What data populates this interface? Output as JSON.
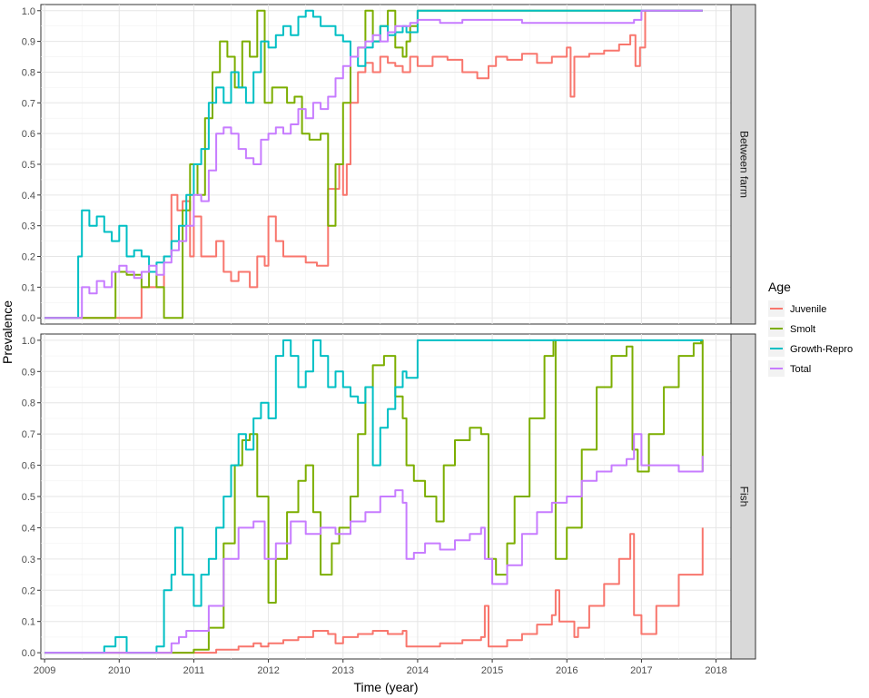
{
  "chart_data": {
    "type": "line",
    "xlabel": "Time (year)",
    "ylabel": "Prevalence",
    "xlim": [
      2008.95,
      2018.2
    ],
    "ylim": [
      -0.02,
      1.02
    ],
    "x_ticks": [
      "2009",
      "2010",
      "2011",
      "2012",
      "2013",
      "2014",
      "2015",
      "2016",
      "2017",
      "2018"
    ],
    "y_ticks": [
      "0.0",
      "0.1",
      "0.2",
      "0.3",
      "0.4",
      "0.5",
      "0.6",
      "0.7",
      "0.8",
      "0.9",
      "1.0"
    ],
    "grid": true,
    "legend": {
      "title": "Age",
      "position": "right"
    },
    "colors": {
      "Juvenile": "#f8766d",
      "Smolt": "#7cae00",
      "Growth-Repro": "#00bfc4",
      "Total": "#c77cff"
    },
    "panels": [
      {
        "strip": "Between farm",
        "series": [
          {
            "name": "Juvenile",
            "x": [
              2009.0,
              2010.2,
              2010.3,
              2010.55,
              2010.6,
              2010.7,
              2010.78,
              2010.85,
              2010.95,
              2011.0,
              2011.1,
              2011.3,
              2011.4,
              2011.5,
              2011.6,
              2011.75,
              2011.85,
              2011.95,
              2012.0,
              2012.1,
              2012.2,
              2012.35,
              2012.5,
              2012.65,
              2012.8,
              2012.95,
              2013.0,
              2013.05,
              2013.1,
              2013.2,
              2013.3,
              2013.4,
              2013.5,
              2013.6,
              2013.7,
              2013.8,
              2013.9,
              2014.0,
              2014.2,
              2014.4,
              2014.6,
              2014.8,
              2014.95,
              2015.05,
              2015.2,
              2015.4,
              2015.6,
              2015.8,
              2016.0,
              2016.05,
              2016.1,
              2016.3,
              2016.5,
              2016.7,
              2016.85,
              2016.92,
              2016.98,
              2017.05,
              2017.2,
              2017.4,
              2017.6,
              2017.82
            ],
            "values": [
              0.0,
              0.0,
              0.1,
              0.1,
              0.2,
              0.4,
              0.35,
              0.38,
              0.2,
              0.33,
              0.2,
              0.25,
              0.15,
              0.12,
              0.15,
              0.1,
              0.2,
              0.17,
              0.33,
              0.25,
              0.2,
              0.2,
              0.18,
              0.17,
              0.42,
              0.5,
              0.4,
              0.5,
              0.7,
              0.8,
              0.83,
              0.8,
              0.85,
              0.83,
              0.82,
              0.8,
              0.85,
              0.82,
              0.85,
              0.84,
              0.8,
              0.78,
              0.82,
              0.85,
              0.84,
              0.86,
              0.83,
              0.85,
              0.88,
              0.72,
              0.85,
              0.86,
              0.87,
              0.89,
              0.92,
              0.82,
              0.88,
              1.0,
              1.0,
              1.0,
              1.0,
              1.0
            ]
          },
          {
            "name": "Smolt",
            "x": [
              2009.0,
              2009.5,
              2009.8,
              2009.95,
              2010.1,
              2010.3,
              2010.4,
              2010.5,
              2010.6,
              2010.75,
              2010.85,
              2010.95,
              2011.05,
              2011.15,
              2011.25,
              2011.35,
              2011.45,
              2011.55,
              2011.65,
              2011.75,
              2011.85,
              2011.95,
              2012.05,
              2012.15,
              2012.25,
              2012.35,
              2012.45,
              2012.55,
              2012.7,
              2012.8,
              2012.9,
              2013.0,
              2013.1,
              2013.2,
              2013.3,
              2013.4,
              2013.5,
              2013.6,
              2013.7,
              2013.8,
              2013.85,
              2013.9,
              2014.0,
              2014.5,
              2015.0,
              2016.0,
              2017.0,
              2017.82
            ],
            "values": [
              0.0,
              0.0,
              0.0,
              0.15,
              0.14,
              0.1,
              0.15,
              0.1,
              0.0,
              0.0,
              0.35,
              0.5,
              0.4,
              0.65,
              0.8,
              0.9,
              0.85,
              0.75,
              0.9,
              0.85,
              1.0,
              0.7,
              0.75,
              0.75,
              0.7,
              0.72,
              0.6,
              0.58,
              0.6,
              0.3,
              0.5,
              0.7,
              0.85,
              0.88,
              1.0,
              0.9,
              0.95,
              1.0,
              0.88,
              0.85,
              0.9,
              0.95,
              1.0,
              1.0,
              1.0,
              1.0,
              1.0,
              1.0
            ]
          },
          {
            "name": "Growth-Repro",
            "x": [
              2009.0,
              2009.4,
              2009.45,
              2009.5,
              2009.6,
              2009.7,
              2009.8,
              2009.9,
              2010.0,
              2010.1,
              2010.2,
              2010.3,
              2010.4,
              2010.5,
              2010.6,
              2010.7,
              2010.8,
              2010.9,
              2011.0,
              2011.1,
              2011.2,
              2011.3,
              2011.4,
              2011.5,
              2011.6,
              2011.7,
              2011.8,
              2011.9,
              2012.0,
              2012.1,
              2012.2,
              2012.3,
              2012.4,
              2012.5,
              2012.6,
              2012.7,
              2012.8,
              2012.9,
              2013.0,
              2013.1,
              2013.2,
              2013.3,
              2013.4,
              2013.5,
              2013.6,
              2013.7,
              2013.8,
              2013.85,
              2014.0,
              2015.0,
              2016.0,
              2017.0,
              2017.82
            ],
            "values": [
              0.0,
              0.0,
              0.2,
              0.35,
              0.3,
              0.33,
              0.28,
              0.25,
              0.3,
              0.2,
              0.22,
              0.2,
              0.15,
              0.18,
              0.2,
              0.25,
              0.3,
              0.4,
              0.5,
              0.55,
              0.7,
              0.75,
              0.7,
              0.8,
              0.75,
              0.7,
              0.8,
              0.9,
              0.88,
              0.92,
              0.95,
              0.92,
              0.98,
              1.0,
              0.98,
              0.95,
              0.95,
              0.92,
              0.9,
              0.85,
              0.82,
              0.88,
              0.9,
              0.95,
              0.92,
              0.93,
              0.95,
              0.93,
              1.0,
              1.0,
              1.0,
              1.0,
              1.0
            ]
          },
          {
            "name": "Total",
            "x": [
              2009.0,
              2009.4,
              2009.5,
              2009.6,
              2009.7,
              2009.8,
              2009.9,
              2010.0,
              2010.1,
              2010.2,
              2010.3,
              2010.4,
              2010.5,
              2010.6,
              2010.7,
              2010.8,
              2010.9,
              2011.0,
              2011.1,
              2011.2,
              2011.3,
              2011.4,
              2011.5,
              2011.6,
              2011.7,
              2011.8,
              2011.9,
              2012.0,
              2012.1,
              2012.2,
              2012.3,
              2012.4,
              2012.5,
              2012.6,
              2012.7,
              2012.8,
              2012.9,
              2013.0,
              2013.1,
              2013.2,
              2013.3,
              2013.4,
              2013.5,
              2013.6,
              2013.7,
              2013.8,
              2013.9,
              2014.0,
              2014.3,
              2014.6,
              2015.0,
              2015.4,
              2015.8,
              2016.2,
              2016.6,
              2016.9,
              2017.0,
              2017.82
            ],
            "values": [
              0.0,
              0.0,
              0.1,
              0.08,
              0.12,
              0.1,
              0.15,
              0.17,
              0.15,
              0.13,
              0.15,
              0.17,
              0.14,
              0.18,
              0.22,
              0.25,
              0.3,
              0.4,
              0.38,
              0.48,
              0.6,
              0.62,
              0.6,
              0.55,
              0.52,
              0.5,
              0.58,
              0.6,
              0.62,
              0.6,
              0.63,
              0.68,
              0.65,
              0.7,
              0.68,
              0.72,
              0.78,
              0.82,
              0.85,
              0.88,
              0.9,
              0.92,
              0.9,
              0.93,
              0.95,
              0.95,
              0.96,
              0.97,
              0.96,
              0.97,
              0.97,
              0.96,
              0.96,
              0.96,
              0.96,
              0.97,
              1.0,
              1.0
            ]
          }
        ]
      },
      {
        "strip": "Fish",
        "series": [
          {
            "name": "Juvenile",
            "x": [
              2009.0,
              2010.0,
              2010.5,
              2011.0,
              2011.3,
              2011.6,
              2011.8,
              2011.9,
              2012.0,
              2012.2,
              2012.4,
              2012.6,
              2012.8,
              2012.9,
              2013.0,
              2013.2,
              2013.4,
              2013.6,
              2013.8,
              2013.85,
              2014.0,
              2014.3,
              2014.6,
              2014.85,
              2014.9,
              2014.95,
              2015.0,
              2015.2,
              2015.4,
              2015.6,
              2015.8,
              2015.85,
              2015.9,
              2016.0,
              2016.1,
              2016.15,
              2016.3,
              2016.5,
              2016.7,
              2016.85,
              2016.9,
              2017.0,
              2017.2,
              2017.5,
              2017.82
            ],
            "values": [
              0.0,
              0.0,
              0.0,
              0.0,
              0.01,
              0.02,
              0.03,
              0.02,
              0.03,
              0.04,
              0.05,
              0.07,
              0.06,
              0.03,
              0.05,
              0.06,
              0.07,
              0.06,
              0.07,
              0.02,
              0.02,
              0.03,
              0.04,
              0.05,
              0.15,
              0.02,
              0.02,
              0.04,
              0.06,
              0.09,
              0.12,
              0.2,
              0.1,
              0.1,
              0.05,
              0.08,
              0.15,
              0.22,
              0.3,
              0.38,
              0.12,
              0.06,
              0.15,
              0.25,
              0.4
            ]
          },
          {
            "name": "Smolt",
            "x": [
              2009.0,
              2010.0,
              2010.5,
              2010.8,
              2011.0,
              2011.2,
              2011.4,
              2011.55,
              2011.65,
              2011.75,
              2011.85,
              2012.0,
              2012.1,
              2012.25,
              2012.4,
              2012.5,
              2012.6,
              2012.7,
              2012.85,
              2012.95,
              2013.1,
              2013.2,
              2013.3,
              2013.4,
              2013.55,
              2013.7,
              2013.8,
              2013.85,
              2013.95,
              2014.1,
              2014.25,
              2014.35,
              2014.5,
              2014.7,
              2014.85,
              2014.95,
              2015.05,
              2015.2,
              2015.3,
              2015.5,
              2015.7,
              2015.82,
              2015.85,
              2016.0,
              2016.2,
              2016.4,
              2016.6,
              2016.8,
              2016.88,
              2016.95,
              2017.1,
              2017.3,
              2017.5,
              2017.7,
              2017.8,
              2017.82
            ],
            "values": [
              0.0,
              0.0,
              0.0,
              0.0,
              0.01,
              0.08,
              0.35,
              0.6,
              0.68,
              0.7,
              0.5,
              0.16,
              0.3,
              0.45,
              0.55,
              0.6,
              0.45,
              0.25,
              0.35,
              0.4,
              0.5,
              0.7,
              0.85,
              0.92,
              0.95,
              0.82,
              0.75,
              0.6,
              0.55,
              0.5,
              0.42,
              0.6,
              0.68,
              0.72,
              0.7,
              0.3,
              0.25,
              0.35,
              0.5,
              0.75,
              0.95,
              1.0,
              0.3,
              0.4,
              0.65,
              0.85,
              0.95,
              0.98,
              0.65,
              0.58,
              0.7,
              0.85,
              0.95,
              0.99,
              1.0,
              0.58
            ]
          },
          {
            "name": "Growth-Repro",
            "x": [
              2009.0,
              2009.4,
              2009.8,
              2009.95,
              2010.1,
              2010.3,
              2010.5,
              2010.6,
              2010.7,
              2010.75,
              2010.85,
              2011.0,
              2011.1,
              2011.2,
              2011.3,
              2011.4,
              2011.5,
              2011.6,
              2011.7,
              2011.8,
              2011.9,
              2012.0,
              2012.1,
              2012.2,
              2012.3,
              2012.4,
              2012.5,
              2012.6,
              2012.7,
              2012.8,
              2012.9,
              2013.0,
              2013.1,
              2013.2,
              2013.3,
              2013.4,
              2013.5,
              2013.6,
              2013.7,
              2013.8,
              2013.85,
              2014.0,
              2015.0,
              2016.0,
              2017.0,
              2017.82
            ],
            "values": [
              0.0,
              0.0,
              0.02,
              0.05,
              0.0,
              0.0,
              0.02,
              0.2,
              0.25,
              0.4,
              0.25,
              0.15,
              0.25,
              0.3,
              0.4,
              0.5,
              0.6,
              0.7,
              0.65,
              0.75,
              0.8,
              0.75,
              0.95,
              1.0,
              0.95,
              0.85,
              0.9,
              1.0,
              0.95,
              0.85,
              0.9,
              0.85,
              0.82,
              0.8,
              0.85,
              0.6,
              0.72,
              0.78,
              0.85,
              0.9,
              0.88,
              1.0,
              1.0,
              1.0,
              1.0,
              1.0
            ]
          },
          {
            "name": "Total",
            "x": [
              2009.0,
              2009.6,
              2010.0,
              2010.5,
              2010.7,
              2010.8,
              2010.9,
              2011.0,
              2011.2,
              2011.4,
              2011.6,
              2011.8,
              2011.95,
              2012.1,
              2012.3,
              2012.5,
              2012.7,
              2012.9,
              2013.1,
              2013.3,
              2013.5,
              2013.7,
              2013.8,
              2013.85,
              2013.95,
              2014.1,
              2014.3,
              2014.5,
              2014.7,
              2014.85,
              2014.9,
              2015.0,
              2015.2,
              2015.4,
              2015.6,
              2015.8,
              2016.0,
              2016.2,
              2016.4,
              2016.6,
              2016.8,
              2016.9,
              2017.0,
              2017.2,
              2017.5,
              2017.82
            ],
            "values": [
              0.0,
              0.0,
              0.0,
              0.0,
              0.03,
              0.05,
              0.07,
              0.07,
              0.15,
              0.3,
              0.4,
              0.42,
              0.3,
              0.35,
              0.42,
              0.38,
              0.4,
              0.38,
              0.42,
              0.45,
              0.5,
              0.52,
              0.48,
              0.3,
              0.32,
              0.35,
              0.33,
              0.36,
              0.38,
              0.4,
              0.3,
              0.22,
              0.28,
              0.38,
              0.45,
              0.48,
              0.5,
              0.55,
              0.58,
              0.6,
              0.62,
              0.7,
              0.6,
              0.6,
              0.58,
              0.63
            ]
          }
        ]
      }
    ]
  }
}
